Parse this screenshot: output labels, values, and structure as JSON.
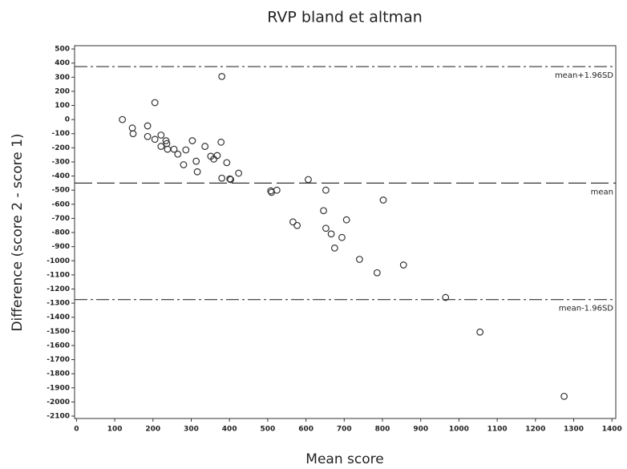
{
  "chart_data": {
    "type": "scatter",
    "title": "RVP bland et altman",
    "x_label": "Mean score",
    "y_label": "Difference (score 2 - score 1)",
    "x": [
      120,
      146,
      148,
      186,
      186,
      205,
      205,
      221,
      221,
      234,
      236,
      238,
      255,
      265,
      280,
      286,
      303,
      313,
      316,
      336,
      351,
      359,
      368,
      378,
      380,
      380,
      393,
      401,
      403,
      424,
      508,
      510,
      524,
      606,
      652,
      646,
      802,
      566,
      577,
      652,
      666,
      675,
      694,
      706,
      740,
      786,
      855,
      965,
      1055,
      1275
    ],
    "values": [
      0,
      -60,
      -100,
      -45,
      -120,
      -140,
      120,
      -110,
      -190,
      -150,
      -170,
      -210,
      -210,
      -245,
      -320,
      -215,
      -150,
      -295,
      -370,
      -190,
      -260,
      -280,
      -255,
      -160,
      305,
      -415,
      -305,
      -420,
      -425,
      -380,
      -505,
      -515,
      -500,
      -425,
      -500,
      -645,
      -570,
      -725,
      -750,
      -770,
      -810,
      -910,
      -835,
      -710,
      -990,
      -1085,
      -1030,
      -1260,
      -1505,
      -1960
    ],
    "reference_lines": [
      {
        "label": "mean+1.96SD",
        "value": 375
      },
      {
        "label": "mean",
        "value": -450
      },
      {
        "label": "mean-1.96SD",
        "value": -1275
      }
    ],
    "xlim": [
      -5,
      1410
    ],
    "ylim": [
      -2117,
      523
    ],
    "xticks": [
      0,
      100,
      200,
      300,
      400,
      500,
      600,
      700,
      800,
      900,
      1000,
      1100,
      1200,
      1300,
      1400
    ],
    "yticks": [
      500,
      400,
      300,
      200,
      100,
      0,
      -100,
      -200,
      -300,
      -400,
      -500,
      -600,
      -700,
      -800,
      -900,
      -1000,
      -1100,
      -1200,
      -1300,
      -1400,
      -1500,
      -1600,
      -1700,
      -1800,
      -1900,
      -2000,
      -2100
    ],
    "color": "#333333"
  }
}
